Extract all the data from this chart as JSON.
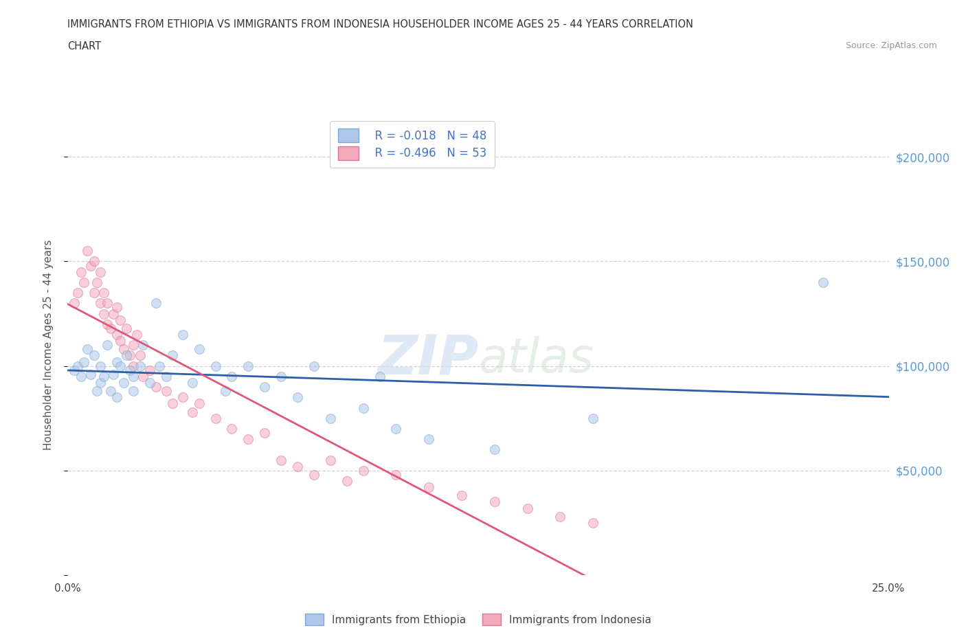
{
  "title_line1": "IMMIGRANTS FROM ETHIOPIA VS IMMIGRANTS FROM INDONESIA HOUSEHOLDER INCOME AGES 25 - 44 YEARS CORRELATION",
  "title_line2": "CHART",
  "source_text": "Source: ZipAtlas.com",
  "ylabel": "Householder Income Ages 25 - 44 years",
  "xlim": [
    0.0,
    0.25
  ],
  "ylim": [
    0,
    220000
  ],
  "yticks": [
    0,
    50000,
    100000,
    150000,
    200000
  ],
  "ytick_labels_right": [
    "",
    "$50,000",
    "$100,000",
    "$150,000",
    "$200,000"
  ],
  "xticks": [
    0.0,
    0.05,
    0.1,
    0.15,
    0.2,
    0.25
  ],
  "xtick_labels": [
    "0.0%",
    "",
    "",
    "",
    "",
    "25.0%"
  ],
  "watermark_zip": "ZIP",
  "watermark_atlas": "atlas",
  "ethiopia_color": "#aec6e8",
  "ethiopia_edge": "#7aaad0",
  "indonesia_color": "#f4a8bc",
  "indonesia_edge": "#d87898",
  "regression_ethiopia_color": "#2c5fa8",
  "regression_indonesia_color": "#e05878",
  "R_ethiopia": -0.018,
  "N_ethiopia": 48,
  "R_indonesia": -0.496,
  "N_indonesia": 53,
  "ethiopia_x": [
    0.002,
    0.003,
    0.004,
    0.005,
    0.006,
    0.007,
    0.008,
    0.009,
    0.01,
    0.01,
    0.011,
    0.012,
    0.013,
    0.014,
    0.015,
    0.015,
    0.016,
    0.017,
    0.018,
    0.019,
    0.02,
    0.02,
    0.022,
    0.023,
    0.025,
    0.027,
    0.028,
    0.03,
    0.032,
    0.035,
    0.038,
    0.04,
    0.045,
    0.048,
    0.05,
    0.055,
    0.06,
    0.065,
    0.07,
    0.075,
    0.08,
    0.09,
    0.095,
    0.1,
    0.11,
    0.13,
    0.16,
    0.23
  ],
  "ethiopia_y": [
    98000,
    100000,
    95000,
    102000,
    108000,
    96000,
    105000,
    88000,
    100000,
    92000,
    95000,
    110000,
    88000,
    96000,
    102000,
    85000,
    100000,
    92000,
    105000,
    98000,
    95000,
    88000,
    100000,
    110000,
    92000,
    130000,
    100000,
    95000,
    105000,
    115000,
    92000,
    108000,
    100000,
    88000,
    95000,
    100000,
    90000,
    95000,
    85000,
    100000,
    75000,
    80000,
    95000,
    70000,
    65000,
    60000,
    75000,
    140000
  ],
  "indonesia_x": [
    0.002,
    0.003,
    0.004,
    0.005,
    0.006,
    0.007,
    0.008,
    0.008,
    0.009,
    0.01,
    0.01,
    0.011,
    0.011,
    0.012,
    0.012,
    0.013,
    0.014,
    0.015,
    0.015,
    0.016,
    0.016,
    0.017,
    0.018,
    0.019,
    0.02,
    0.02,
    0.021,
    0.022,
    0.023,
    0.025,
    0.027,
    0.03,
    0.032,
    0.035,
    0.038,
    0.04,
    0.045,
    0.05,
    0.055,
    0.06,
    0.065,
    0.07,
    0.075,
    0.08,
    0.085,
    0.09,
    0.1,
    0.11,
    0.12,
    0.13,
    0.14,
    0.15,
    0.16
  ],
  "indonesia_y": [
    130000,
    135000,
    145000,
    140000,
    155000,
    148000,
    135000,
    150000,
    140000,
    130000,
    145000,
    125000,
    135000,
    120000,
    130000,
    118000,
    125000,
    115000,
    128000,
    112000,
    122000,
    108000,
    118000,
    105000,
    110000,
    100000,
    115000,
    105000,
    95000,
    98000,
    90000,
    88000,
    82000,
    85000,
    78000,
    82000,
    75000,
    70000,
    65000,
    68000,
    55000,
    52000,
    48000,
    55000,
    45000,
    50000,
    48000,
    42000,
    38000,
    35000,
    32000,
    28000,
    25000
  ],
  "grid_color": "#c8c8c8",
  "background_color": "#ffffff",
  "marker_size": 100,
  "marker_alpha": 0.55
}
